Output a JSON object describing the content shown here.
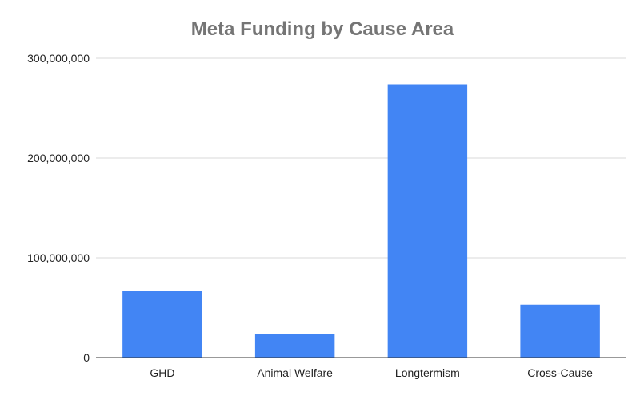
{
  "chart_data": {
    "type": "bar",
    "title": "Meta Funding by Cause Area",
    "xlabel": "",
    "ylabel": "",
    "categories": [
      "GHD",
      "Animal Welfare",
      "Longtermism",
      "Cross-Cause"
    ],
    "values": [
      67000000,
      24000000,
      274000000,
      53000000
    ],
    "ylim": [
      0,
      300000000
    ],
    "yticks": [
      0,
      100000000,
      200000000,
      300000000
    ],
    "ytick_labels": [
      "0",
      "100,000,000",
      "200,000,000",
      "300,000,000"
    ],
    "grid": true,
    "legend": "none",
    "bar_color": "#4285f4"
  }
}
